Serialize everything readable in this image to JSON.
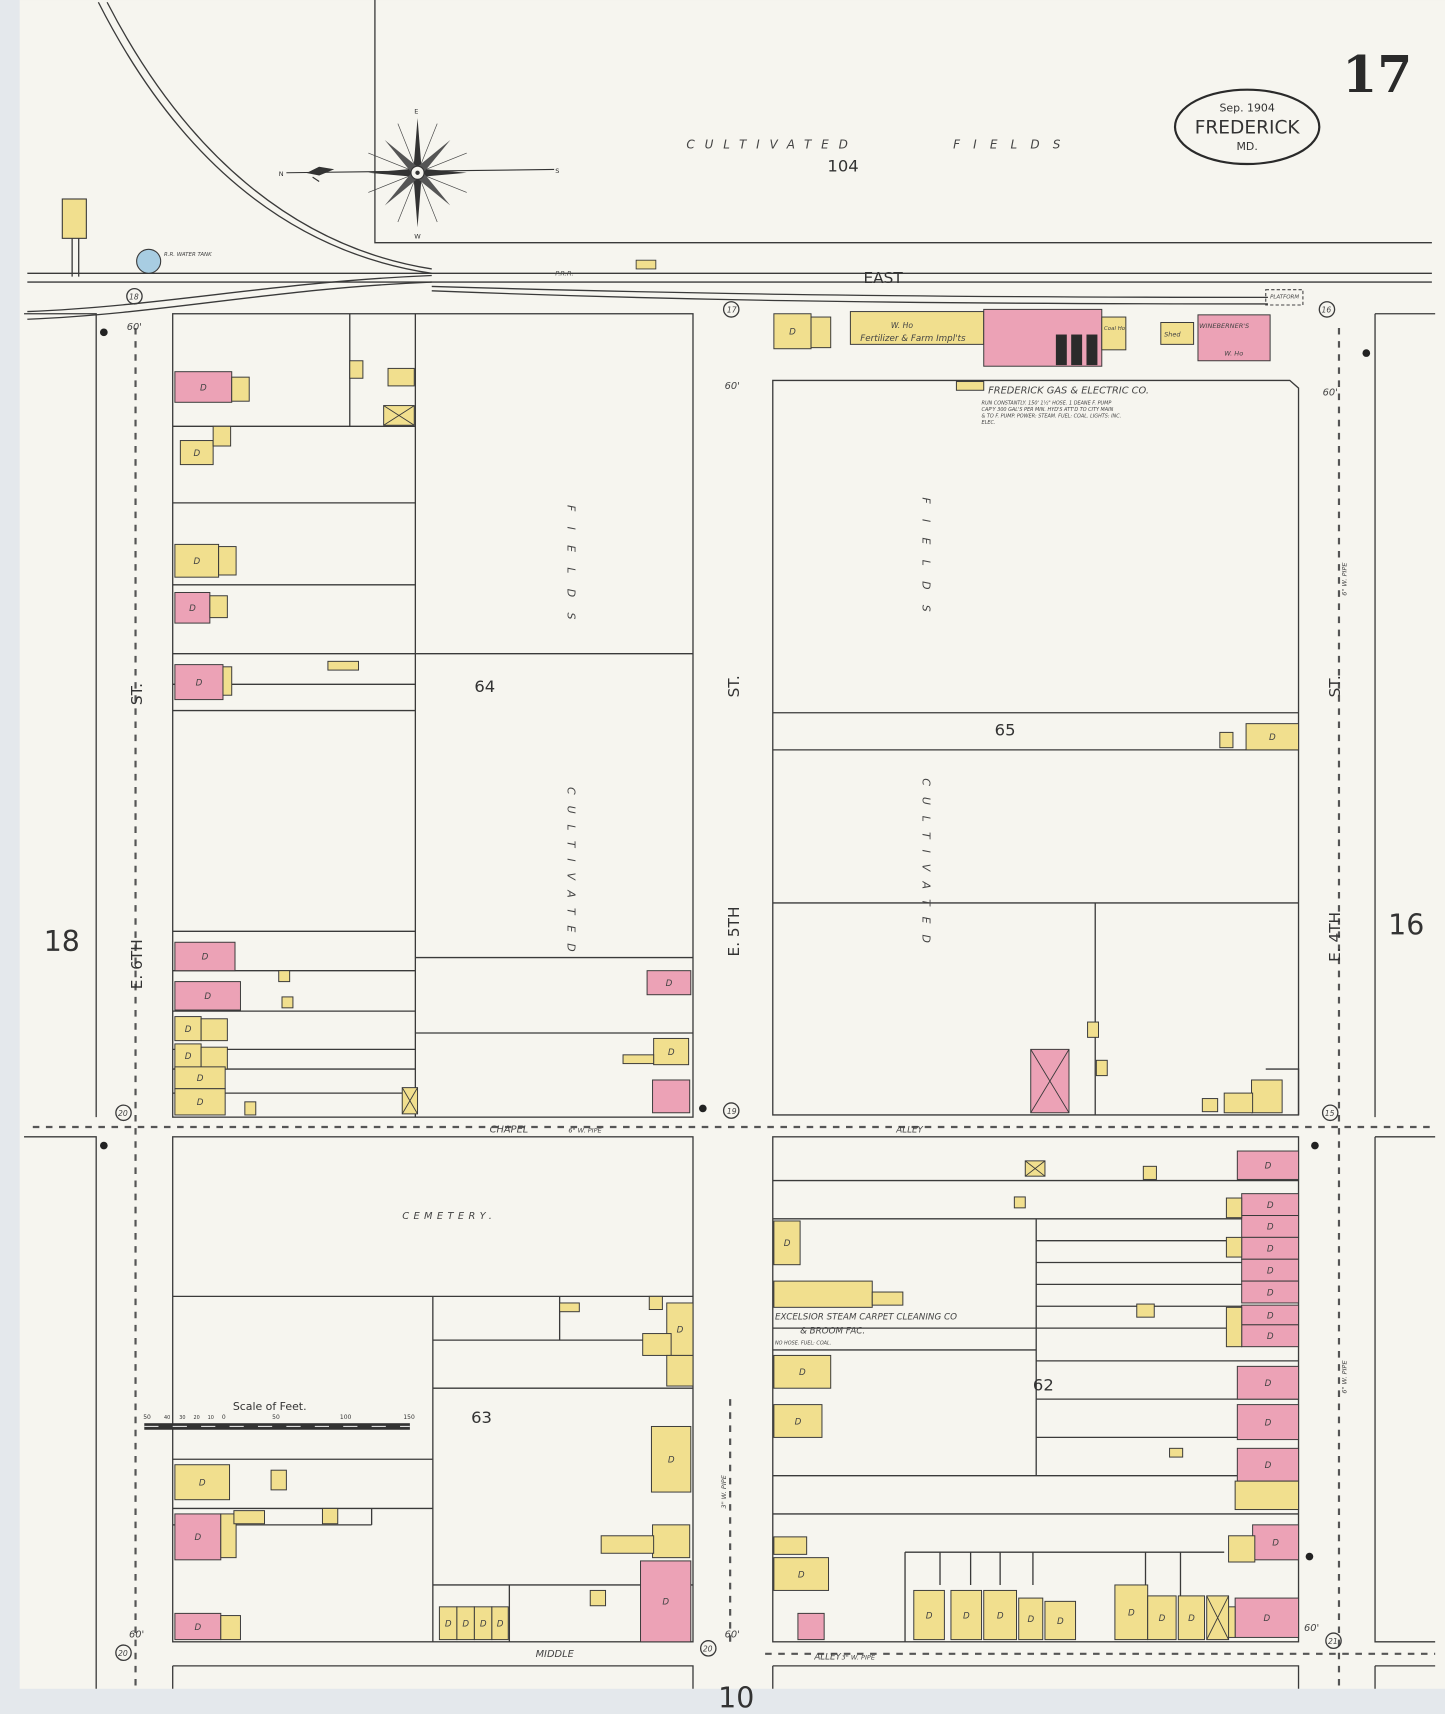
{
  "sheet": {
    "number": "17",
    "date": "Sep. 1904",
    "city": "FREDERICK",
    "state": "MD."
  },
  "adjacent_sheets": {
    "west": "18",
    "east": "16",
    "south": "10"
  },
  "streets": {
    "east": "EAST",
    "e6th": "E. 6TH",
    "e6th_st": "ST.",
    "e5th": "E. 5TH",
    "e5th_st": "ST.",
    "e4th": "E. 4TH",
    "e4th_st": "ST.",
    "chapel": "CHAPEL",
    "alley_north": "ALLEY",
    "middle": "MIDDLE",
    "alley_south": "ALLEY",
    "railroad": "P.R.R."
  },
  "blocks": {
    "b104": "104",
    "b64": "64",
    "b65": "65",
    "b63": "63",
    "b62": "62"
  },
  "areas": {
    "cultivated": "CULTIVATED",
    "fields": "FIELDS",
    "cemetery": "CEMETERY."
  },
  "labels": {
    "water_tank": "R.R. WATER TANK",
    "platform": "PLATFORM",
    "fertilizer": "Fertilizer & Farm Impl'ts",
    "whse": "W. Ho",
    "coal_ho": "Coal Ho.",
    "shed": "Shed",
    "wineberner": "WINEBERNER'S",
    "gas_co": "FREDERICK GAS & ELECTRIC CO.",
    "gas_co_note1": "RUN CONSTANTLY. 150' 1½\" HOSE. 1 DEANE F. PUMP",
    "gas_co_note2": "CAP'Y 300 GAL'S PER MIN. HYD'S ATT'D TO CITY MAIN",
    "gas_co_note3": "& TO F. PUMP. POWER: STEAM. FUEL: COAL. LIGHTS: INC.",
    "gas_co_note4": "ELEC.",
    "excelsior1": "EXCELSIOR STEAM CARPET CLEANING CO",
    "excelsior2": "& BROOM FAC.",
    "excelsior_note": "NO HOSE. FUEL: COAL.",
    "dwelling": "D",
    "pipe_6": "6\" W. PIPE",
    "pipe_3": "3\" W. PIPE",
    "width_60": "60'",
    "hydrant_18": "18",
    "hydrant_17": "17",
    "hydrant_16": "16",
    "hydrant_19": "19",
    "hydrant_15": "15",
    "hydrant_20": "20",
    "hydrant_21": "21"
  },
  "scale": {
    "title": "Scale of Feet.",
    "ticks": [
      "50",
      "40",
      "30",
      "20",
      "10",
      "0",
      "50",
      "100",
      "150"
    ]
  },
  "compass": {
    "n": "N",
    "s": "S",
    "e": "E",
    "w": "W"
  },
  "colors": {
    "paper": "#f6f5ef",
    "frame": "#f1df8e",
    "brick": "#eca2b6",
    "water": "#a8cde2",
    "ink": "#3a3a3a"
  }
}
